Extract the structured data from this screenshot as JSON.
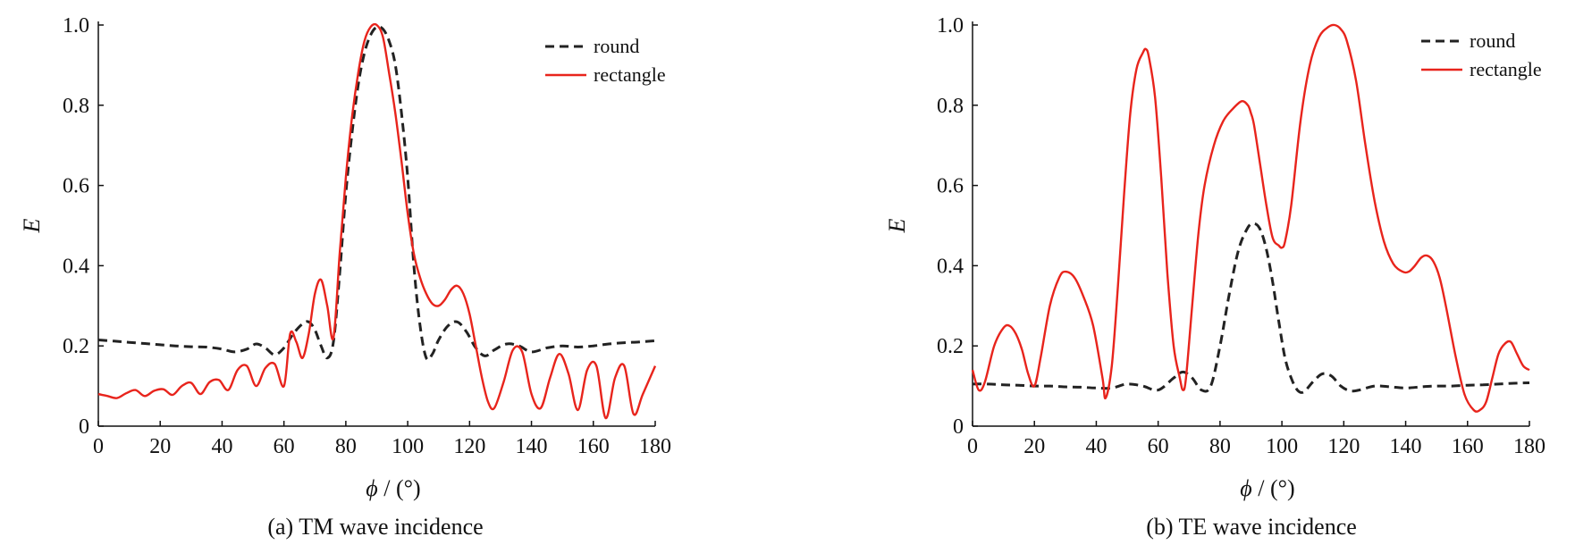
{
  "chart_data": [
    {
      "type": "line",
      "caption": "(a) TM wave incidence",
      "xlabel_symbol": "ϕ",
      "xlabel_unit": " / (°)",
      "ylabel": "E",
      "xlim": [
        0,
        180
      ],
      "ylim": [
        0,
        1.0
      ],
      "xticks": [
        0,
        20,
        40,
        60,
        80,
        100,
        120,
        140,
        160,
        180
      ],
      "yticks": [
        "0",
        "0.2",
        "0.4",
        "0.6",
        "0.8",
        "1.0"
      ],
      "grid": false,
      "legend_position": "top-right",
      "series": [
        {
          "name": "round",
          "color": "#222222",
          "style": "dashed",
          "x": [
            0,
            5,
            10,
            15,
            20,
            25,
            30,
            35,
            40,
            44,
            48,
            51,
            54,
            57,
            60,
            63,
            66,
            68,
            70,
            72,
            74,
            76,
            78,
            80,
            82,
            84,
            86,
            88,
            90,
            92,
            94,
            96,
            98,
            100,
            102,
            104,
            106,
            108,
            110,
            113,
            116,
            119,
            122,
            125,
            128,
            132,
            136,
            140,
            145,
            150,
            155,
            160,
            165,
            170,
            175,
            180
          ],
          "y": [
            0.215,
            0.212,
            0.209,
            0.206,
            0.203,
            0.2,
            0.198,
            0.197,
            0.192,
            0.185,
            0.192,
            0.205,
            0.195,
            0.178,
            0.195,
            0.23,
            0.255,
            0.26,
            0.24,
            0.2,
            0.17,
            0.21,
            0.38,
            0.58,
            0.73,
            0.85,
            0.93,
            0.975,
            0.995,
            0.99,
            0.96,
            0.9,
            0.78,
            0.62,
            0.4,
            0.25,
            0.17,
            0.18,
            0.215,
            0.25,
            0.26,
            0.235,
            0.195,
            0.175,
            0.19,
            0.205,
            0.2,
            0.185,
            0.195,
            0.2,
            0.197,
            0.2,
            0.205,
            0.208,
            0.21,
            0.213
          ]
        },
        {
          "name": "rectangle",
          "color": "#e8241c",
          "style": "solid",
          "x": [
            0,
            3,
            6,
            9,
            12,
            15,
            18,
            21,
            24,
            27,
            30,
            33,
            36,
            39,
            42,
            45,
            48,
            51,
            54,
            57,
            60,
            62,
            64,
            66,
            68,
            70,
            72,
            74,
            76,
            78,
            80,
            82,
            84,
            86,
            88,
            90,
            92,
            94,
            96,
            98,
            100,
            102,
            104,
            106,
            108,
            110,
            112,
            114,
            116,
            118,
            120,
            122,
            124,
            126,
            128,
            131,
            134,
            137,
            140,
            143,
            146,
            149,
            152,
            155,
            158,
            161,
            164,
            167,
            170,
            173,
            176,
            180
          ],
          "y": [
            0.08,
            0.075,
            0.07,
            0.082,
            0.09,
            0.075,
            0.088,
            0.092,
            0.078,
            0.1,
            0.108,
            0.08,
            0.11,
            0.115,
            0.09,
            0.14,
            0.15,
            0.1,
            0.145,
            0.155,
            0.1,
            0.23,
            0.21,
            0.17,
            0.23,
            0.33,
            0.365,
            0.3,
            0.22,
            0.43,
            0.62,
            0.77,
            0.88,
            0.96,
            0.995,
            1.0,
            0.97,
            0.88,
            0.78,
            0.66,
            0.53,
            0.43,
            0.37,
            0.33,
            0.305,
            0.3,
            0.315,
            0.34,
            0.35,
            0.33,
            0.28,
            0.2,
            0.12,
            0.06,
            0.045,
            0.11,
            0.19,
            0.185,
            0.08,
            0.045,
            0.12,
            0.18,
            0.13,
            0.04,
            0.14,
            0.15,
            0.02,
            0.12,
            0.15,
            0.03,
            0.08,
            0.15
          ]
        }
      ]
    },
    {
      "type": "line",
      "caption": "(b) TE wave incidence",
      "xlabel_symbol": "ϕ",
      "xlabel_unit": " / (°)",
      "ylabel": "E",
      "xlim": [
        0,
        180
      ],
      "ylim": [
        0,
        1.0
      ],
      "xticks": [
        0,
        20,
        40,
        60,
        80,
        100,
        120,
        140,
        160,
        180
      ],
      "yticks": [
        "0",
        "0.2",
        "0.4",
        "0.6",
        "0.8",
        "1.0"
      ],
      "grid": false,
      "legend_position": "top-right",
      "series": [
        {
          "name": "round",
          "color": "#222222",
          "style": "dashed",
          "x": [
            0,
            5,
            10,
            15,
            20,
            25,
            30,
            35,
            40,
            45,
            50,
            55,
            60,
            65,
            68,
            71,
            74,
            77,
            80,
            83,
            86,
            89,
            91,
            93,
            95,
            97,
            99,
            101,
            103,
            105,
            107,
            110,
            113,
            116,
            119,
            122,
            125,
            130,
            135,
            140,
            145,
            150,
            155,
            160,
            165,
            170,
            175,
            180
          ],
          "y": [
            0.105,
            0.105,
            0.103,
            0.102,
            0.1,
            0.1,
            0.098,
            0.097,
            0.095,
            0.095,
            0.105,
            0.1,
            0.09,
            0.12,
            0.135,
            0.12,
            0.09,
            0.1,
            0.2,
            0.33,
            0.44,
            0.495,
            0.505,
            0.49,
            0.44,
            0.36,
            0.26,
            0.17,
            0.12,
            0.09,
            0.085,
            0.11,
            0.13,
            0.125,
            0.1,
            0.088,
            0.09,
            0.1,
            0.098,
            0.095,
            0.098,
            0.1,
            0.1,
            0.102,
            0.103,
            0.105,
            0.107,
            0.108
          ]
        },
        {
          "name": "rectangle",
          "color": "#e8241c",
          "style": "solid",
          "x": [
            0,
            2,
            4,
            7,
            10,
            12,
            14,
            16,
            18,
            20,
            22,
            25,
            28,
            30,
            33,
            36,
            39,
            42,
            43,
            45,
            47,
            49,
            51,
            53,
            55,
            56,
            57,
            59,
            61,
            63,
            65,
            67,
            68,
            69,
            71,
            73,
            75,
            78,
            81,
            84,
            87,
            89,
            90,
            91,
            93,
            95,
            97,
            99,
            100,
            101,
            103,
            106,
            109,
            112,
            115,
            117,
            119,
            121,
            124,
            127,
            130,
            133,
            136,
            139,
            141,
            143,
            145,
            147,
            149,
            151,
            153,
            156,
            159,
            162,
            164,
            166,
            168,
            170,
            172,
            174,
            176,
            178,
            180
          ],
          "y": [
            0.14,
            0.09,
            0.11,
            0.2,
            0.245,
            0.25,
            0.23,
            0.19,
            0.13,
            0.1,
            0.17,
            0.3,
            0.37,
            0.385,
            0.37,
            0.32,
            0.25,
            0.12,
            0.07,
            0.15,
            0.35,
            0.58,
            0.78,
            0.89,
            0.93,
            0.94,
            0.92,
            0.82,
            0.62,
            0.38,
            0.2,
            0.12,
            0.09,
            0.12,
            0.3,
            0.48,
            0.6,
            0.7,
            0.76,
            0.79,
            0.81,
            0.8,
            0.78,
            0.75,
            0.65,
            0.55,
            0.47,
            0.45,
            0.445,
            0.46,
            0.55,
            0.76,
            0.9,
            0.97,
            0.995,
            1.0,
            0.99,
            0.96,
            0.86,
            0.7,
            0.56,
            0.46,
            0.405,
            0.385,
            0.385,
            0.4,
            0.42,
            0.425,
            0.41,
            0.37,
            0.3,
            0.18,
            0.08,
            0.04,
            0.04,
            0.06,
            0.12,
            0.18,
            0.205,
            0.21,
            0.18,
            0.15,
            0.14
          ]
        }
      ]
    }
  ]
}
